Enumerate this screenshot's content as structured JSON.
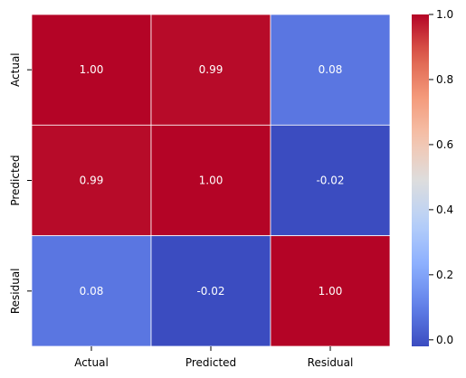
{
  "chart_data": {
    "type": "heatmap",
    "title": "",
    "xlabel": "",
    "ylabel": "",
    "x_categories": [
      "Actual",
      "Predicted",
      "Residual"
    ],
    "y_categories": [
      "Actual",
      "Predicted",
      "Residual"
    ],
    "values": [
      [
        1.0,
        0.99,
        0.08
      ],
      [
        0.99,
        1.0,
        -0.02
      ],
      [
        0.08,
        -0.02,
        1.0
      ]
    ],
    "cell_labels": [
      [
        "1.00",
        "0.99",
        "0.08"
      ],
      [
        "0.99",
        "1.00",
        "-0.02"
      ],
      [
        "0.08",
        "-0.02",
        "1.00"
      ]
    ],
    "colorbar": {
      "cmap": "coolwarm",
      "vmin": -0.02,
      "vmax": 1.0,
      "ticks": [
        0.0,
        0.2,
        0.4,
        0.6,
        0.8,
        1.0
      ],
      "tick_labels": [
        "0.0",
        "0.2",
        "0.4",
        "0.6",
        "0.8",
        "1.0"
      ]
    },
    "grid_line_color": "#ffffff",
    "annotation_color": "#ffffff"
  }
}
